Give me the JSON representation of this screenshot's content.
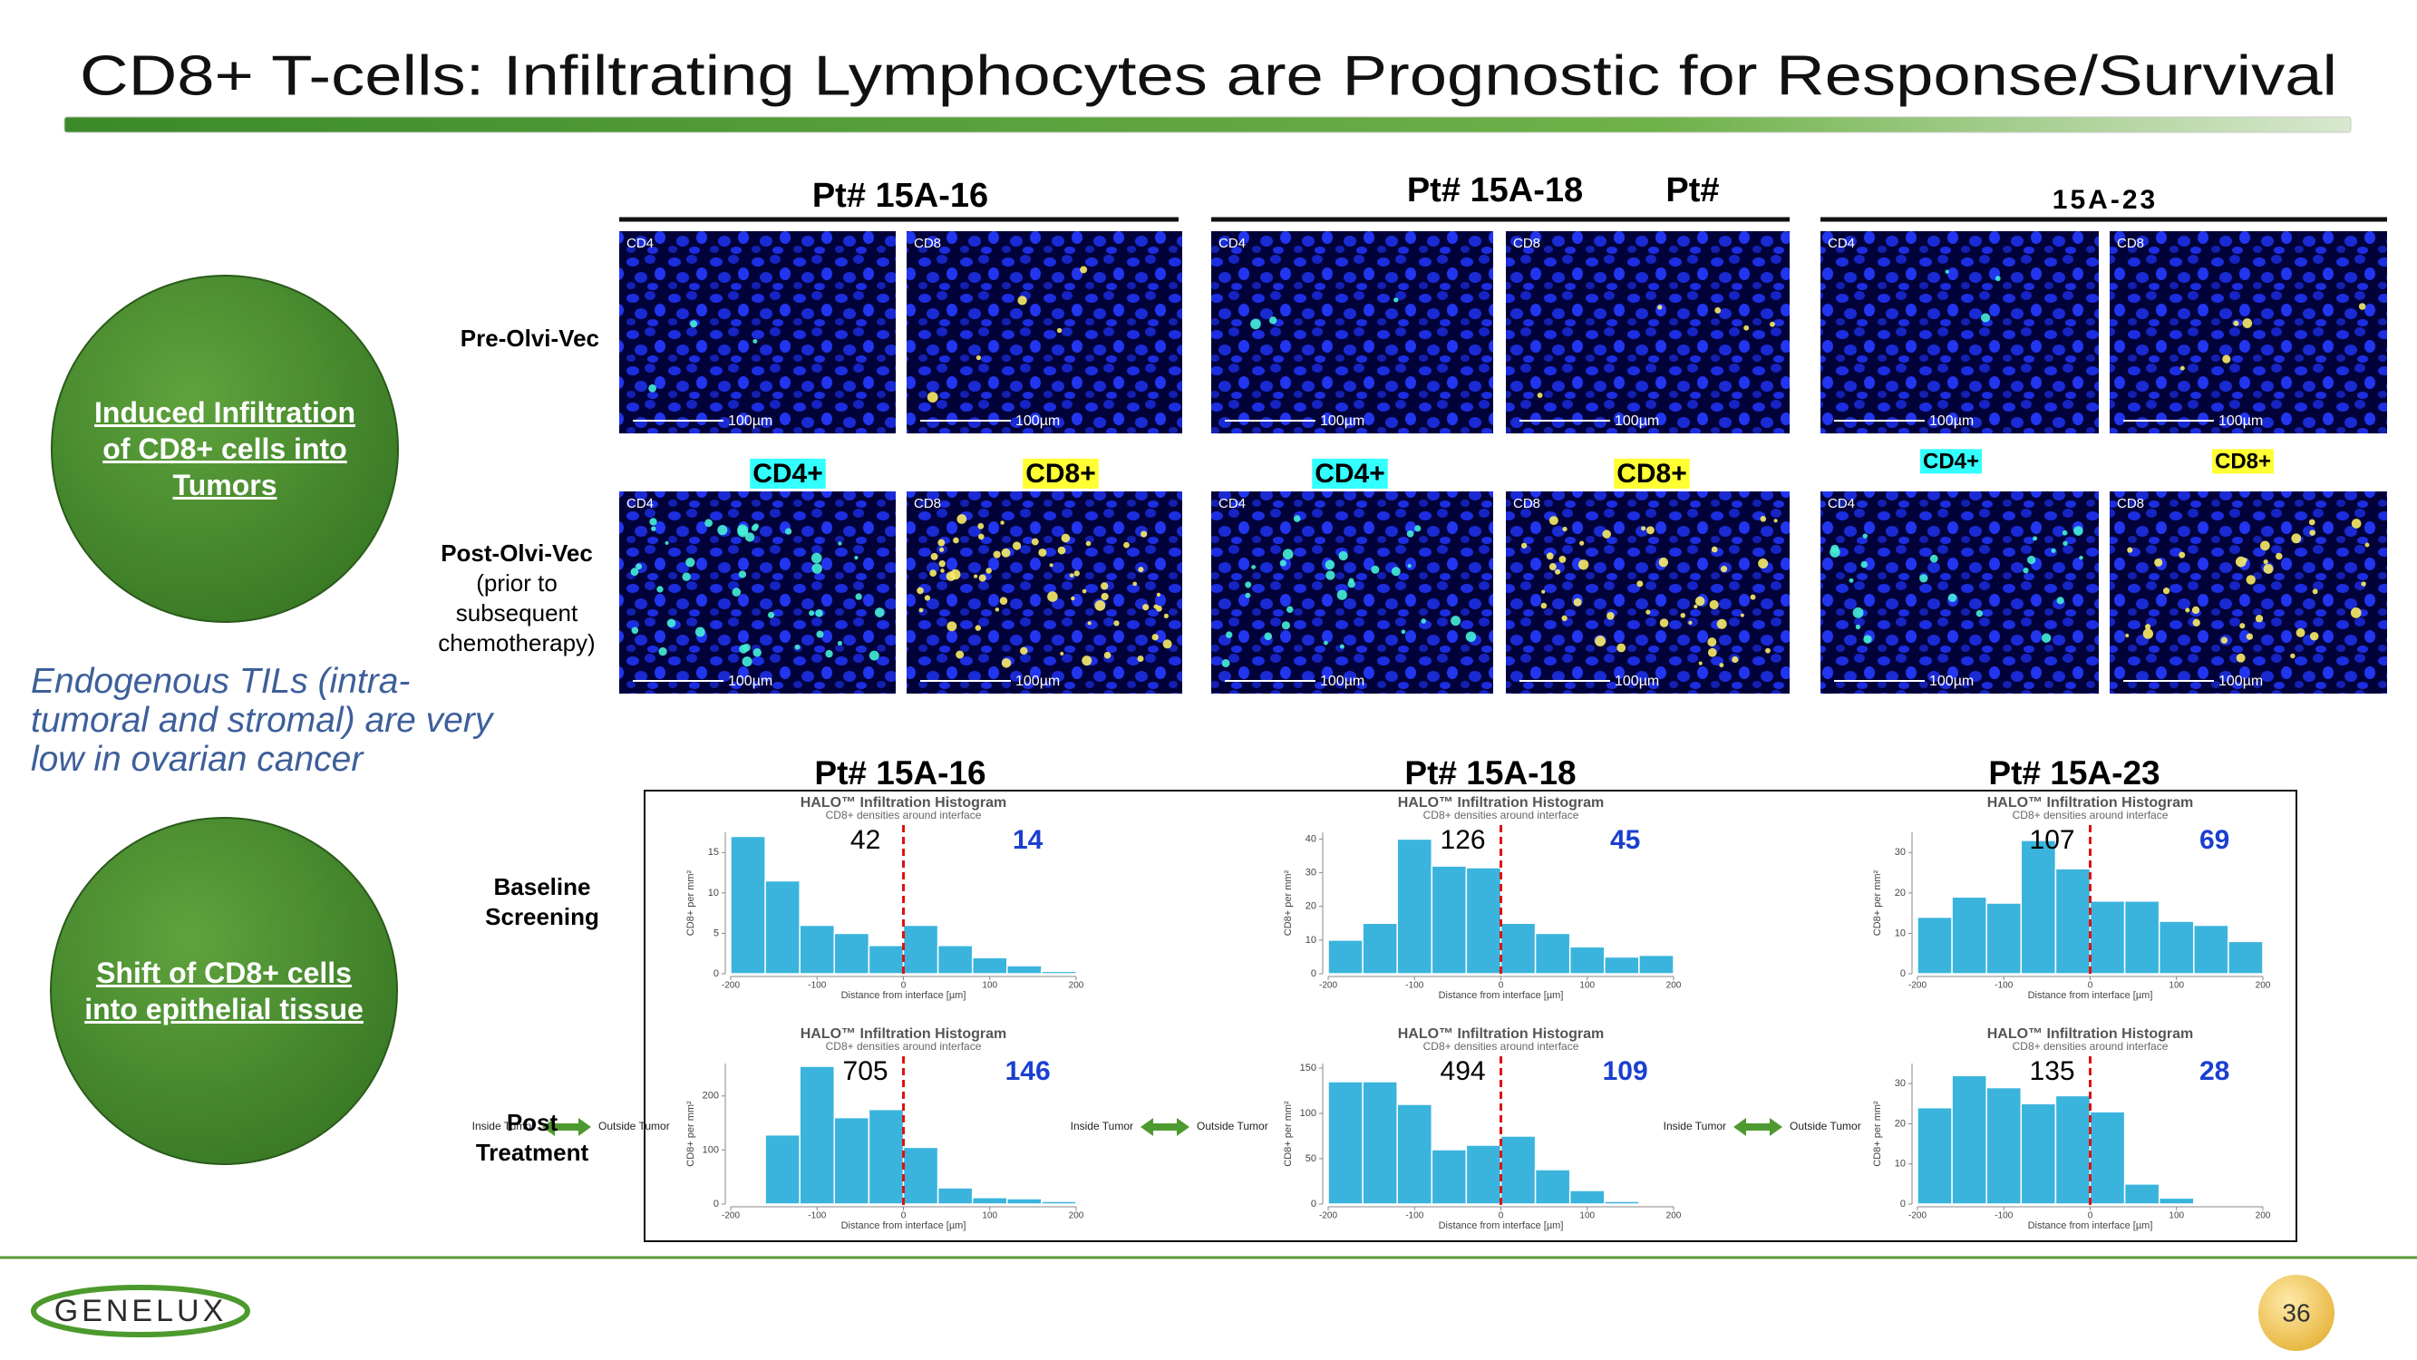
{
  "header": {
    "title": "CD8+ T-cells: Infiltrating Lymphocytes are Prognostic for Response/Survival"
  },
  "circles": [
    "Induced Infiltration of CD8+ cells into Tumors",
    "Shift of CD8+ cells into epithelial tissue"
  ],
  "note": "Endogenous TILs (intra-tumoral and stromal) are very low in ovarian cancer",
  "microscopy": {
    "patients": [
      "Pt# 15A-16",
      "Pt# 15A-18",
      "Pt#",
      "15A-23"
    ],
    "pre_label": "Pre-Olvi-Vec",
    "post_label": "Post-Olvi-Vec",
    "post_note": "(prior to subsequent chemotherapy)",
    "stain_tags": [
      "CD4+",
      "CD8+"
    ],
    "panel_labels": [
      "CD4",
      "CD8"
    ],
    "scale_bar": "100µm"
  },
  "histograms": {
    "patients": [
      "Pt# 15A-16",
      "Pt# 15A-18",
      "Pt# 15A-23"
    ],
    "rows": [
      "Baseline Screening",
      "Post Treatment"
    ],
    "title": "HALO™ Infiltration Histogram",
    "subtitle": "CD8+ densities around interface",
    "x_label": "Distance from interface [µm]",
    "y_label": "CD8+ per mm²",
    "legend": [
      "Inside Tumor",
      "Outside Tumor"
    ],
    "xlim": [
      -200,
      200
    ],
    "xticks": [
      -200,
      -100,
      0,
      100,
      200
    ],
    "interface": 0,
    "bins": [
      -200,
      -160,
      -120,
      -80,
      -40,
      0,
      40,
      80,
      120,
      160,
      200
    ],
    "charts": [
      {
        "ylim": [
          0,
          17.5
        ],
        "yticks": [
          0,
          5,
          10,
          15
        ],
        "values": [
          17,
          11.5,
          6,
          5,
          3.5,
          6,
          3.5,
          2,
          1,
          0.3
        ],
        "inside_count": 42,
        "outside_count": 14
      },
      {
        "ylim": [
          0,
          42
        ],
        "yticks": [
          0,
          10,
          20,
          30,
          40
        ],
        "values": [
          10,
          15,
          40,
          32,
          31.5,
          15,
          12,
          8,
          5,
          5.5
        ],
        "inside_count": 126,
        "outside_count": 45
      },
      {
        "ylim": [
          0,
          35
        ],
        "yticks": [
          0,
          10,
          20,
          30
        ],
        "values": [
          14,
          19,
          17.5,
          33,
          26,
          18,
          18,
          13,
          12,
          8
        ],
        "inside_count": 107,
        "outside_count": 69
      },
      {
        "ylim": [
          0,
          260
        ],
        "yticks": [
          0,
          100,
          200
        ],
        "values": [
          0,
          128,
          255,
          160,
          175,
          105,
          30,
          12,
          10,
          5
        ],
        "inside_count": 705,
        "outside_count": 146
      },
      {
        "ylim": [
          0,
          155
        ],
        "yticks": [
          0,
          50,
          100,
          150
        ],
        "values": [
          135,
          135,
          110,
          60,
          65,
          75,
          38,
          15,
          3,
          0
        ],
        "inside_count": 494,
        "outside_count": 109
      },
      {
        "ylim": [
          0,
          35
        ],
        "yticks": [
          0,
          10,
          20,
          30
        ],
        "values": [
          24,
          32,
          29,
          25,
          27,
          23,
          5,
          1.5,
          0,
          0
        ],
        "inside_count": 135,
        "outside_count": 28
      }
    ]
  },
  "footer": {
    "logo": "GENELUX",
    "page": 36
  }
}
